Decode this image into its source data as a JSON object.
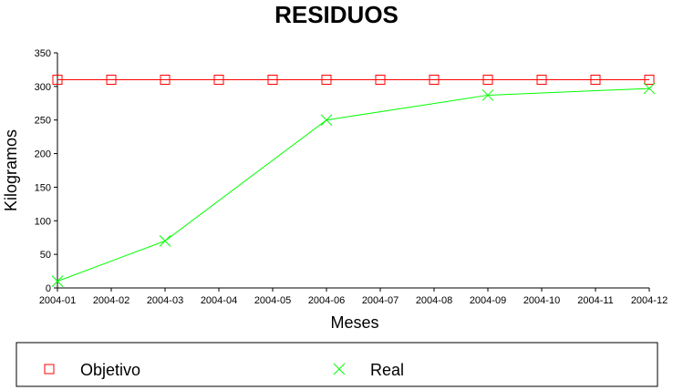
{
  "chart_data": {
    "type": "line",
    "title": "RESIDUOS",
    "xlabel": "Meses",
    "ylabel": "Kilogramos",
    "categories": [
      "2004-01",
      "2004-02",
      "2004-03",
      "2004-04",
      "2004-05",
      "2004-06",
      "2004-07",
      "2004-08",
      "2004-09",
      "2004-10",
      "2004-11",
      "2004-12"
    ],
    "ylim": [
      0,
      350
    ],
    "yticks": [
      0,
      50,
      100,
      150,
      200,
      250,
      300,
      350
    ],
    "grid": false,
    "legend_position": "bottom",
    "series": [
      {
        "name": "Objetivo",
        "color": "#ff0000",
        "marker": "square",
        "points": [
          {
            "x": "2004-01",
            "y": 310
          },
          {
            "x": "2004-02",
            "y": 310
          },
          {
            "x": "2004-03",
            "y": 310
          },
          {
            "x": "2004-04",
            "y": 310
          },
          {
            "x": "2004-05",
            "y": 310
          },
          {
            "x": "2004-06",
            "y": 310
          },
          {
            "x": "2004-07",
            "y": 310
          },
          {
            "x": "2004-08",
            "y": 310
          },
          {
            "x": "2004-09",
            "y": 310
          },
          {
            "x": "2004-10",
            "y": 310
          },
          {
            "x": "2004-11",
            "y": 310
          },
          {
            "x": "2004-12",
            "y": 310
          }
        ]
      },
      {
        "name": "Real",
        "color": "#00ff00",
        "marker": "x",
        "points": [
          {
            "x": "2004-01",
            "y": 10
          },
          {
            "x": "2004-03",
            "y": 70
          },
          {
            "x": "2004-06",
            "y": 250
          },
          {
            "x": "2004-09",
            "y": 287
          },
          {
            "x": "2004-12",
            "y": 297
          }
        ]
      }
    ]
  }
}
